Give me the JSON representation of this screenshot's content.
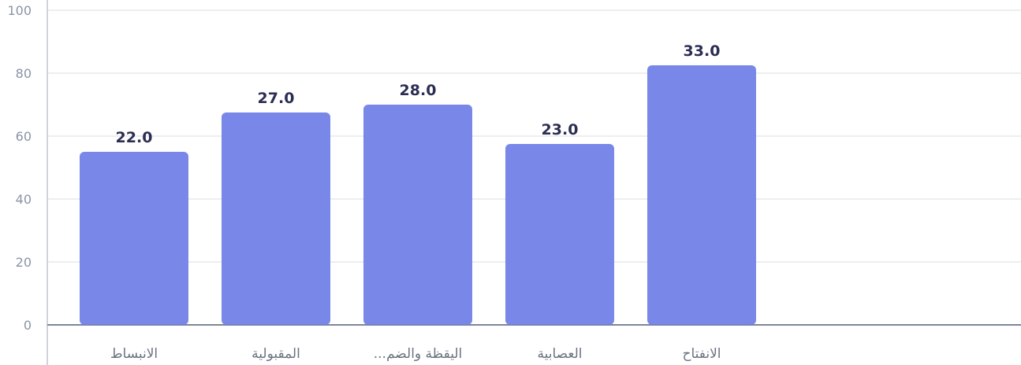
{
  "chart_data": {
    "type": "bar",
    "categories": [
      "الانبساط",
      "المقبولية",
      "اليقظة والضم...",
      "العصابية",
      "الانفتاح"
    ],
    "values": [
      55,
      67.5,
      70,
      57.5,
      82.5
    ],
    "data_labels": [
      "22.0",
      "27.0",
      "28.0",
      "23.0",
      "33.0"
    ],
    "ylim": [
      0,
      100
    ],
    "yticks": [
      "0",
      "20",
      "40",
      "60",
      "80",
      "100"
    ],
    "ytick_values": [
      0,
      20,
      40,
      60,
      80,
      100
    ],
    "grid": true,
    "bar_color": "#6e7ee6",
    "label_color": "#2b2d52",
    "axis_color": "#8a94a6",
    "title": "",
    "xlabel": "",
    "ylabel": ""
  }
}
